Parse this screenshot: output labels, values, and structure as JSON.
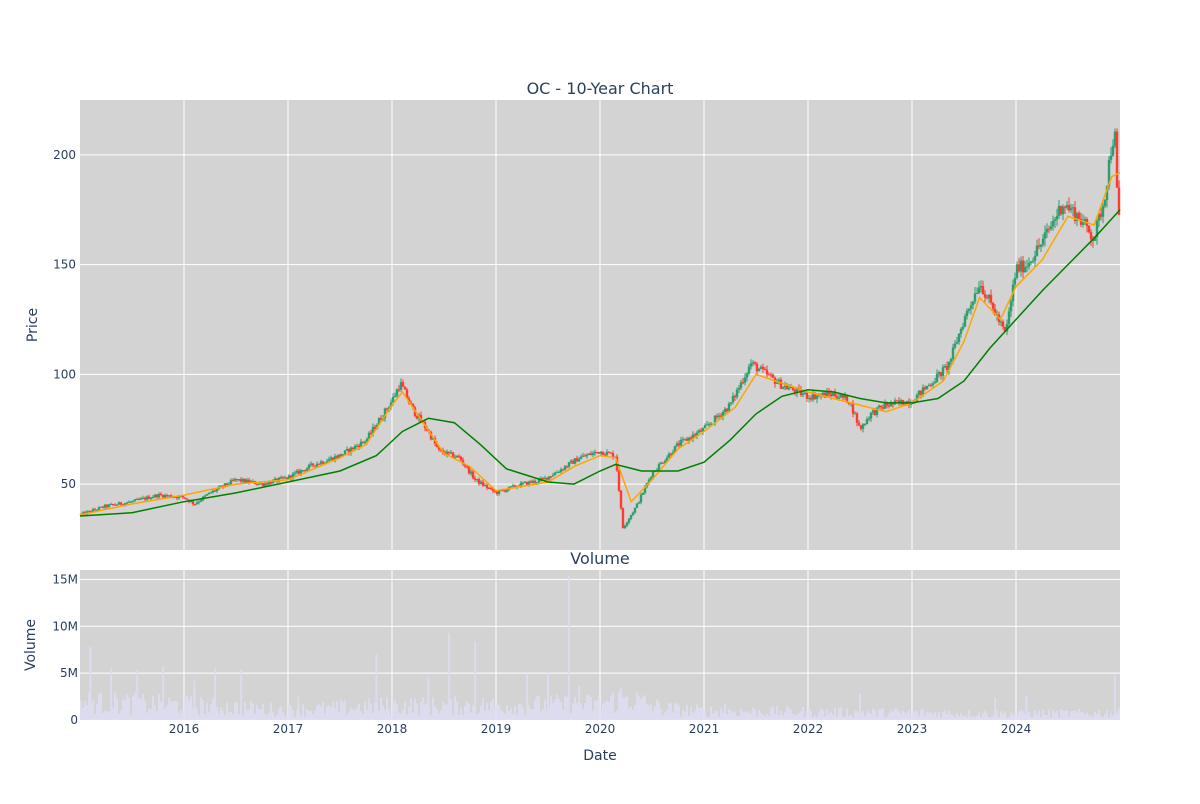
{
  "chart_data": [
    {
      "type": "candlestick",
      "title": "OC - 10-Year Chart",
      "ylabel": "Price",
      "xlabel": "",
      "x_range": [
        2015.0,
        2025.0
      ],
      "ylim": [
        20,
        225
      ],
      "y_ticks": [
        50,
        100,
        150,
        200
      ],
      "x_ticks": [
        "2016",
        "2017",
        "2018",
        "2019",
        "2020",
        "2021",
        "2022",
        "2023",
        "2024"
      ],
      "grid": true,
      "colors": {
        "increasing": "#2e9e6e",
        "decreasing": "#ff3b30",
        "ma_short": "#ffa500",
        "ma_long": "#008000",
        "background": "#d3d3d3"
      },
      "price_path": [
        [
          2015.0,
          36
        ],
        [
          2015.25,
          40
        ],
        [
          2015.5,
          42
        ],
        [
          2015.75,
          45
        ],
        [
          2016.0,
          44
        ],
        [
          2016.1,
          41
        ],
        [
          2016.25,
          46
        ],
        [
          2016.5,
          52
        ],
        [
          2016.75,
          50
        ],
        [
          2017.0,
          53
        ],
        [
          2017.25,
          59
        ],
        [
          2017.5,
          63
        ],
        [
          2017.75,
          70
        ],
        [
          2018.0,
          88
        ],
        [
          2018.08,
          96
        ],
        [
          2018.2,
          84
        ],
        [
          2018.35,
          74
        ],
        [
          2018.45,
          65
        ],
        [
          2018.65,
          62
        ],
        [
          2018.8,
          52
        ],
        [
          2019.0,
          46
        ],
        [
          2019.25,
          50
        ],
        [
          2019.45,
          52
        ],
        [
          2019.6,
          56
        ],
        [
          2019.8,
          62
        ],
        [
          2020.0,
          65
        ],
        [
          2020.15,
          63
        ],
        [
          2020.22,
          30
        ],
        [
          2020.35,
          40
        ],
        [
          2020.5,
          55
        ],
        [
          2020.75,
          68
        ],
        [
          2021.0,
          75
        ],
        [
          2021.25,
          86
        ],
        [
          2021.45,
          105
        ],
        [
          2021.6,
          100
        ],
        [
          2021.75,
          95
        ],
        [
          2022.0,
          90
        ],
        [
          2022.25,
          91
        ],
        [
          2022.4,
          88
        ],
        [
          2022.5,
          75
        ],
        [
          2022.6,
          82
        ],
        [
          2022.75,
          86
        ],
        [
          2023.0,
          88
        ],
        [
          2023.2,
          97
        ],
        [
          2023.35,
          104
        ],
        [
          2023.5,
          125
        ],
        [
          2023.65,
          142
        ],
        [
          2023.8,
          128
        ],
        [
          2023.9,
          118
        ],
        [
          2024.0,
          148
        ],
        [
          2024.1,
          150
        ],
        [
          2024.25,
          160
        ],
        [
          2024.45,
          178
        ],
        [
          2024.6,
          172
        ],
        [
          2024.75,
          162
        ],
        [
          2024.85,
          180
        ],
        [
          2024.92,
          205
        ],
        [
          2024.95,
          210
        ],
        [
          2024.98,
          172
        ],
        [
          2025.0,
          170
        ]
      ],
      "ma_short": [
        [
          2015.0,
          36
        ],
        [
          2015.5,
          41
        ],
        [
          2016.0,
          45
        ],
        [
          2016.5,
          50
        ],
        [
          2017.0,
          52
        ],
        [
          2017.5,
          62
        ],
        [
          2017.75,
          68
        ],
        [
          2018.0,
          86
        ],
        [
          2018.1,
          92
        ],
        [
          2018.3,
          78
        ],
        [
          2018.5,
          64
        ],
        [
          2018.75,
          58
        ],
        [
          2019.0,
          47
        ],
        [
          2019.5,
          51
        ],
        [
          2019.75,
          58
        ],
        [
          2020.0,
          63
        ],
        [
          2020.15,
          62
        ],
        [
          2020.3,
          42
        ],
        [
          2020.5,
          52
        ],
        [
          2020.75,
          66
        ],
        [
          2021.0,
          74
        ],
        [
          2021.3,
          85
        ],
        [
          2021.5,
          100
        ],
        [
          2021.75,
          96
        ],
        [
          2022.0,
          92
        ],
        [
          2022.5,
          86
        ],
        [
          2022.75,
          83
        ],
        [
          2023.0,
          87
        ],
        [
          2023.3,
          97
        ],
        [
          2023.5,
          115
        ],
        [
          2023.65,
          135
        ],
        [
          2023.85,
          125
        ],
        [
          2024.0,
          140
        ],
        [
          2024.25,
          152
        ],
        [
          2024.5,
          172
        ],
        [
          2024.75,
          168
        ],
        [
          2024.92,
          190
        ],
        [
          2025.0,
          192
        ]
      ],
      "ma_long": [
        [
          2015.0,
          35.5
        ],
        [
          2015.5,
          37
        ],
        [
          2016.0,
          42
        ],
        [
          2016.5,
          46
        ],
        [
          2017.0,
          51
        ],
        [
          2017.5,
          56
        ],
        [
          2017.85,
          63
        ],
        [
          2018.1,
          74
        ],
        [
          2018.35,
          80
        ],
        [
          2018.6,
          78
        ],
        [
          2018.85,
          68
        ],
        [
          2019.1,
          57
        ],
        [
          2019.5,
          51
        ],
        [
          2019.75,
          50
        ],
        [
          2020.0,
          56
        ],
        [
          2020.15,
          59
        ],
        [
          2020.4,
          56
        ],
        [
          2020.75,
          56
        ],
        [
          2021.0,
          60
        ],
        [
          2021.25,
          70
        ],
        [
          2021.5,
          82
        ],
        [
          2021.75,
          90
        ],
        [
          2022.0,
          93
        ],
        [
          2022.25,
          92
        ],
        [
          2022.5,
          89
        ],
        [
          2022.75,
          87
        ],
        [
          2023.0,
          87
        ],
        [
          2023.25,
          89
        ],
        [
          2023.5,
          97
        ],
        [
          2023.75,
          112
        ],
        [
          2024.0,
          125
        ],
        [
          2024.25,
          138
        ],
        [
          2024.5,
          150
        ],
        [
          2024.75,
          162
        ],
        [
          2025.0,
          175
        ]
      ]
    },
    {
      "type": "bar",
      "title": "Volume",
      "ylabel": "Volume",
      "xlabel": "Date",
      "x_range": [
        2015.0,
        2025.0
      ],
      "ylim": [
        0,
        16
      ],
      "y_ticks": [
        0,
        5,
        10,
        15
      ],
      "y_tick_labels": [
        "0",
        "5M",
        "10M",
        "15M"
      ],
      "x_ticks": [
        "2016",
        "2017",
        "2018",
        "2019",
        "2020",
        "2021",
        "2022",
        "2023",
        "2024"
      ],
      "grid": true,
      "color": "#dcdcf0",
      "base_levels": [
        [
          2015.0,
          2.0
        ],
        [
          2016.0,
          1.7
        ],
        [
          2017.0,
          1.1
        ],
        [
          2018.0,
          1.6
        ],
        [
          2019.0,
          1.6
        ],
        [
          2020.0,
          1.8
        ],
        [
          2020.25,
          2.5
        ],
        [
          2020.6,
          1.3
        ],
        [
          2021.0,
          1.0
        ],
        [
          2022.0,
          0.9
        ],
        [
          2023.0,
          0.8
        ],
        [
          2024.0,
          0.7
        ],
        [
          2025.0,
          0.8
        ]
      ],
      "spikes_millions": [
        [
          2015.1,
          7.8
        ],
        [
          2015.3,
          5.5
        ],
        [
          2015.55,
          5.3
        ],
        [
          2015.8,
          5.7
        ],
        [
          2016.1,
          4.2
        ],
        [
          2016.3,
          5.5
        ],
        [
          2016.55,
          5.4
        ],
        [
          2017.1,
          2.5
        ],
        [
          2017.85,
          7.0
        ],
        [
          2018.35,
          4.6
        ],
        [
          2018.55,
          9.3
        ],
        [
          2018.8,
          8.4
        ],
        [
          2019.3,
          5.0
        ],
        [
          2019.5,
          5.2
        ],
        [
          2019.7,
          15.4
        ],
        [
          2019.8,
          3.6
        ],
        [
          2020.2,
          3.4
        ],
        [
          2021.2,
          1.8
        ],
        [
          2022.5,
          2.8
        ],
        [
          2023.8,
          2.4
        ],
        [
          2024.1,
          2.6
        ],
        [
          2024.95,
          4.9
        ]
      ]
    }
  ]
}
